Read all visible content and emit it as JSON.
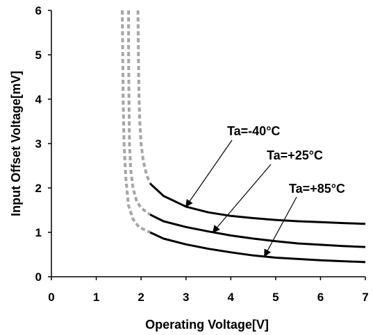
{
  "chart_data": {
    "type": "line",
    "title": "",
    "xlabel": "Operating Voltage[V]",
    "ylabel": "Input Offset Voltage[mV]",
    "xlim": [
      0,
      7
    ],
    "ylim": [
      0,
      6
    ],
    "xticks": [
      "0",
      "1",
      "2",
      "3",
      "4",
      "5",
      "6",
      "7"
    ],
    "yticks": [
      "0",
      "1",
      "2",
      "3",
      "4",
      "5",
      "6"
    ],
    "grid": false,
    "legend": "none",
    "series": [
      {
        "name": "Ta=-40°C",
        "color": "#000000",
        "solid": [
          [
            2.2,
            2.1
          ],
          [
            2.5,
            1.82
          ],
          [
            3.0,
            1.58
          ],
          [
            3.5,
            1.45
          ],
          [
            4.0,
            1.37
          ],
          [
            4.5,
            1.32
          ],
          [
            5.0,
            1.28
          ],
          [
            5.5,
            1.25
          ],
          [
            6.0,
            1.23
          ],
          [
            6.5,
            1.21
          ],
          [
            7.0,
            1.19
          ]
        ],
        "dashed": [
          [
            1.93,
            6.0
          ],
          [
            1.94,
            5.0
          ],
          [
            1.95,
            4.2
          ],
          [
            1.97,
            3.5
          ],
          [
            2.0,
            3.0
          ],
          [
            2.05,
            2.6
          ],
          [
            2.12,
            2.3
          ],
          [
            2.2,
            2.1
          ]
        ]
      },
      {
        "name": "Ta=+25°C",
        "color": "#000000",
        "solid": [
          [
            2.2,
            1.4
          ],
          [
            2.5,
            1.25
          ],
          [
            3.0,
            1.12
          ],
          [
            3.5,
            1.02
          ],
          [
            4.0,
            0.93
          ],
          [
            4.5,
            0.86
          ],
          [
            5.0,
            0.8
          ],
          [
            5.5,
            0.75
          ],
          [
            6.0,
            0.72
          ],
          [
            6.5,
            0.69
          ],
          [
            7.0,
            0.67
          ]
        ],
        "dashed": [
          [
            1.72,
            6.0
          ],
          [
            1.72,
            5.0
          ],
          [
            1.73,
            4.0
          ],
          [
            1.74,
            3.0
          ],
          [
            1.77,
            2.4
          ],
          [
            1.82,
            2.0
          ],
          [
            1.9,
            1.7
          ],
          [
            2.0,
            1.55
          ],
          [
            2.2,
            1.4
          ]
        ]
      },
      {
        "name": "Ta=+85°C",
        "color": "#000000",
        "solid": [
          [
            2.2,
            1.0
          ],
          [
            2.5,
            0.86
          ],
          [
            3.0,
            0.73
          ],
          [
            3.5,
            0.63
          ],
          [
            4.0,
            0.55
          ],
          [
            4.5,
            0.48
          ],
          [
            5.0,
            0.43
          ],
          [
            5.5,
            0.4
          ],
          [
            6.0,
            0.37
          ],
          [
            6.5,
            0.35
          ],
          [
            7.0,
            0.33
          ]
        ],
        "dashed": [
          [
            1.58,
            6.0
          ],
          [
            1.59,
            5.0
          ],
          [
            1.6,
            4.0
          ],
          [
            1.62,
            3.0
          ],
          [
            1.66,
            2.2
          ],
          [
            1.72,
            1.6
          ],
          [
            1.82,
            1.3
          ],
          [
            1.95,
            1.12
          ],
          [
            2.2,
            1.0
          ]
        ]
      }
    ],
    "annotations": [
      {
        "text": "Ta=-40°C",
        "points_to": [
          3.0,
          1.58
        ]
      },
      {
        "text": "Ta=+25°C",
        "points_to": [
          3.6,
          1.0
        ]
      },
      {
        "text": "Ta=+85°C",
        "points_to": [
          4.75,
          0.46
        ]
      }
    ],
    "dashed_color": "#a6a6a6"
  }
}
